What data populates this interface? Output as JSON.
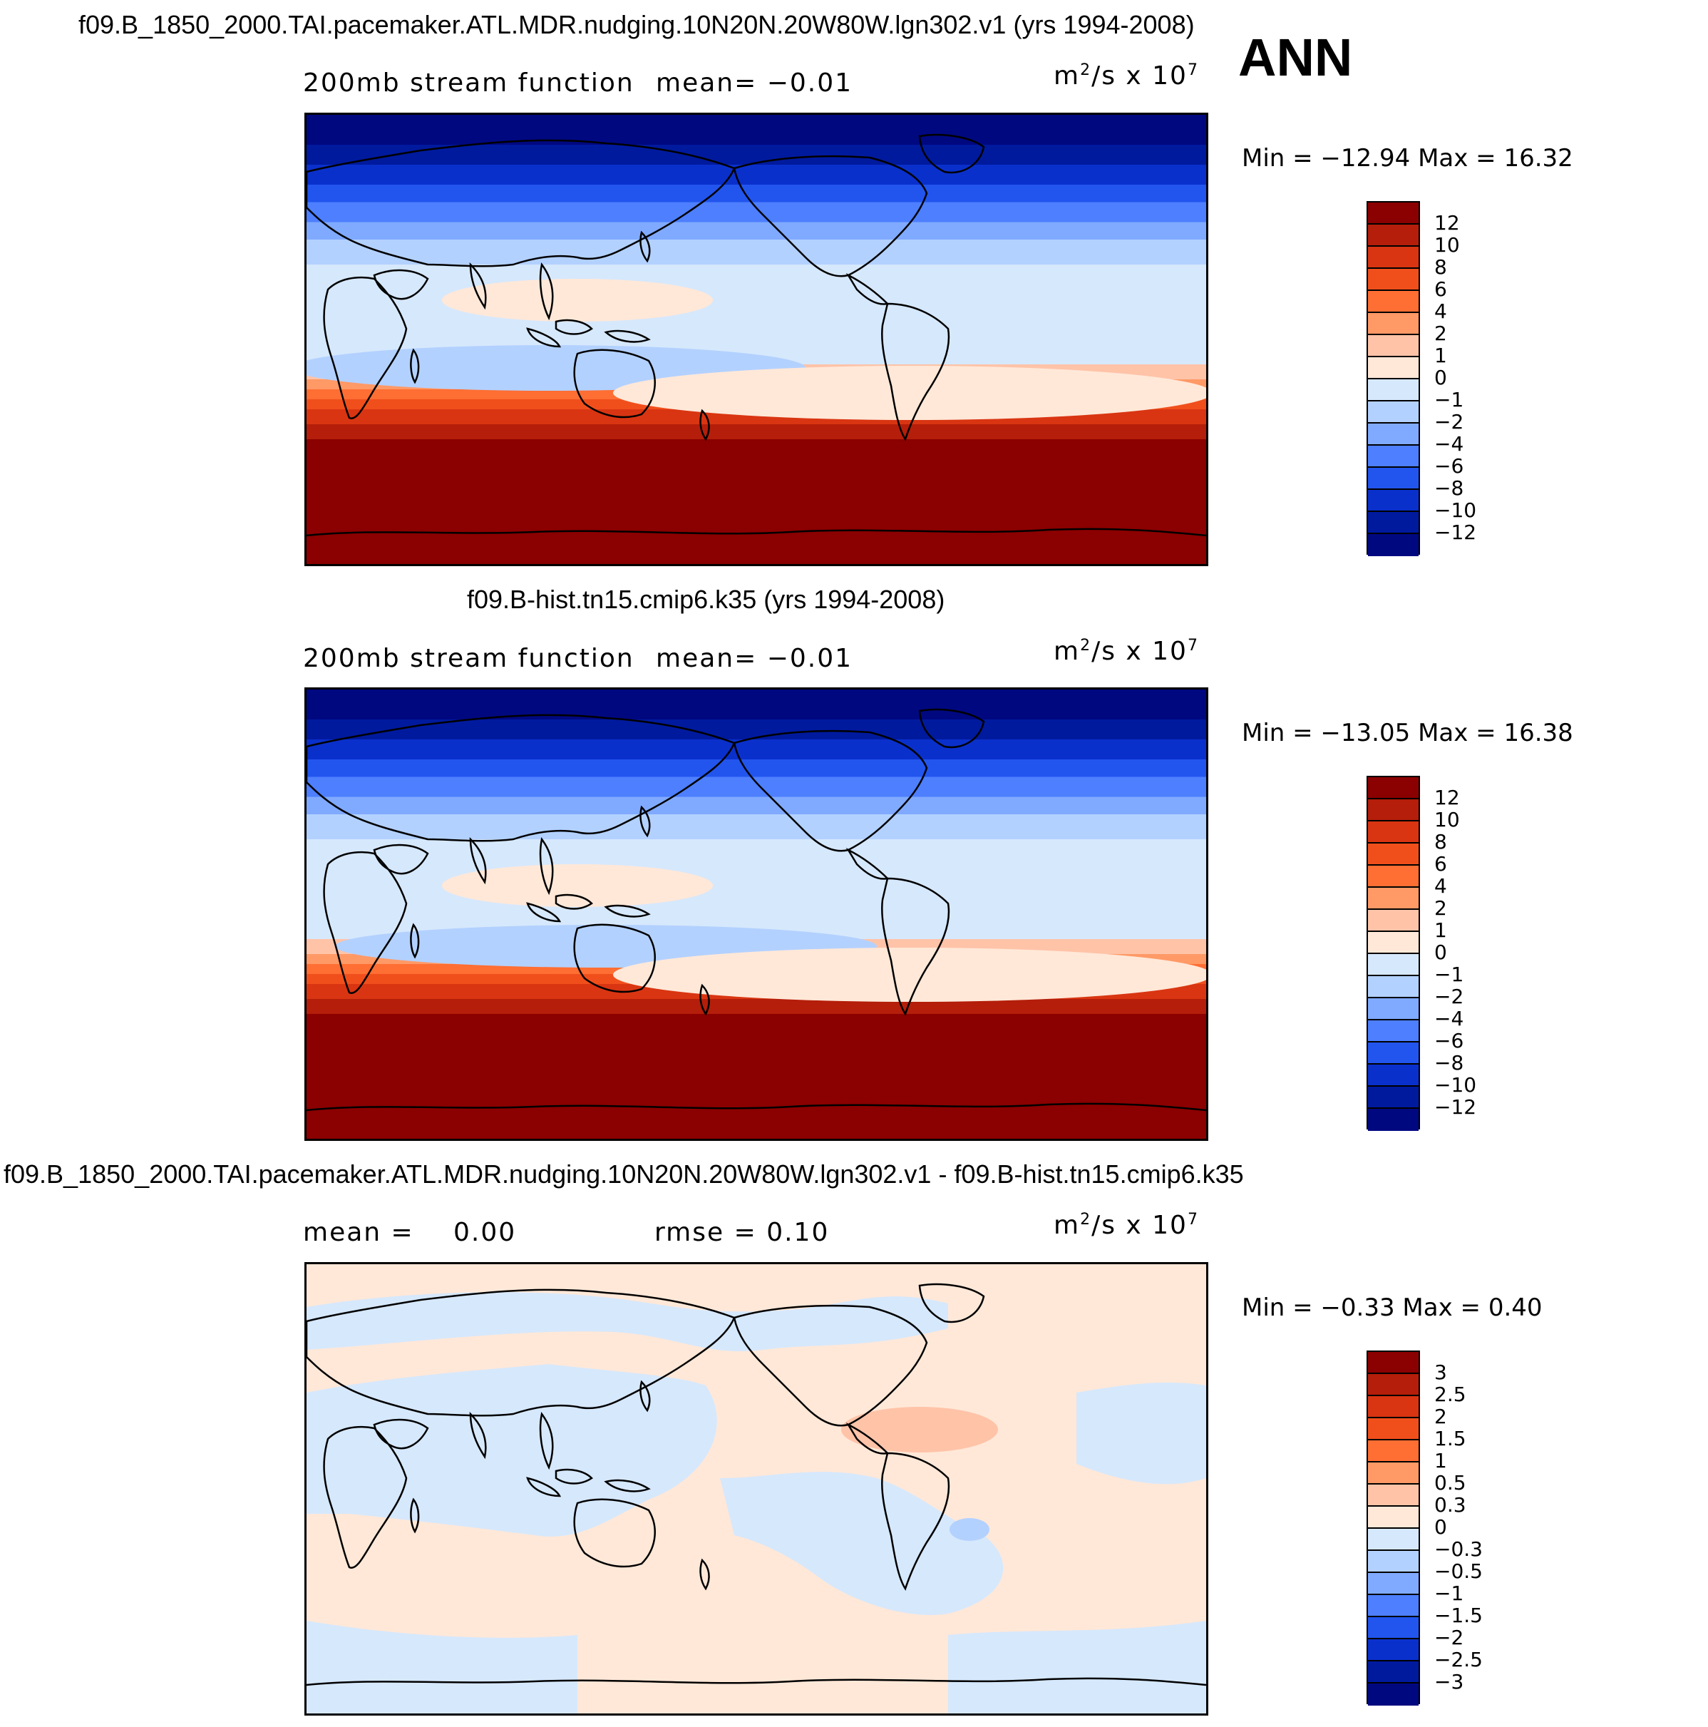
{
  "season": "ANN",
  "panels": [
    {
      "id": "p1",
      "case_title": "f09.B_1850_2000.TAI.pacemaker.ATL.MDR.nudging.10N20N.20W80W.lgn302.v1 (yrs 1994-2008)",
      "left_label": "200mb stream function",
      "mean_text": "mean=   −0.01",
      "rmse_text": "",
      "units_base": "m",
      "units_mid": "/s x 10",
      "units_sup1": "2",
      "units_sup2": "7",
      "stats": "Min = −12.94 Max =   16.32",
      "levels": [
        "12",
        "10",
        "8",
        "6",
        "4",
        "2",
        "1",
        "0",
        "−1",
        "−2",
        "−4",
        "−6",
        "−8",
        "−10",
        "−12"
      ],
      "colors": [
        "#8b0000",
        "#b41e0a",
        "#d93512",
        "#f04f1c",
        "#ff6e33",
        "#ff9966",
        "#ffc3a8",
        "#ffe8d8",
        "#d6e8fc",
        "#b3d1ff",
        "#80aaff",
        "#4d7fff",
        "#2255ee",
        "#0a30cc",
        "#001a9e",
        "#000880"
      ],
      "bands": [
        {
          "lat": 90,
          "c": 15
        },
        {
          "lat": 78,
          "c": 14
        },
        {
          "lat": 70,
          "c": 13
        },
        {
          "lat": 62,
          "c": 12
        },
        {
          "lat": 55,
          "c": 11
        },
        {
          "lat": 47,
          "c": 10
        },
        {
          "lat": 40,
          "c": 9
        },
        {
          "lat": 30,
          "c": 8
        },
        {
          "lat": -10,
          "c": 6
        },
        {
          "lat": -16,
          "c": 5
        },
        {
          "lat": -20,
          "c": 4
        },
        {
          "lat": -24,
          "c": 3
        },
        {
          "lat": -28,
          "c": 2
        },
        {
          "lat": -34,
          "c": 1
        },
        {
          "lat": -40,
          "c": 0
        }
      ]
    },
    {
      "id": "p2",
      "case_title": "f09.B-hist.tn15.cmip6.k35 (yrs 1994-2008)",
      "left_label": "200mb stream function",
      "mean_text": "mean=   −0.01",
      "rmse_text": "",
      "units_base": "m",
      "units_mid": "/s x 10",
      "units_sup1": "2",
      "units_sup2": "7",
      "stats": "Min = −13.05 Max =   16.38",
      "levels": [
        "12",
        "10",
        "8",
        "6",
        "4",
        "2",
        "1",
        "0",
        "−1",
        "−2",
        "−4",
        "−6",
        "−8",
        "−10",
        "−12"
      ],
      "colors": [
        "#8b0000",
        "#b41e0a",
        "#d93512",
        "#f04f1c",
        "#ff6e33",
        "#ff9966",
        "#ffc3a8",
        "#ffe8d8",
        "#d6e8fc",
        "#b3d1ff",
        "#80aaff",
        "#4d7fff",
        "#2255ee",
        "#0a30cc",
        "#001a9e",
        "#000880"
      ],
      "bands": [
        {
          "lat": 90,
          "c": 15
        },
        {
          "lat": 78,
          "c": 14
        },
        {
          "lat": 70,
          "c": 13
        },
        {
          "lat": 62,
          "c": 12
        },
        {
          "lat": 55,
          "c": 11
        },
        {
          "lat": 47,
          "c": 10
        },
        {
          "lat": 40,
          "c": 9
        },
        {
          "lat": 30,
          "c": 8
        },
        {
          "lat": -10,
          "c": 6
        },
        {
          "lat": -16,
          "c": 5
        },
        {
          "lat": -20,
          "c": 4
        },
        {
          "lat": -24,
          "c": 3
        },
        {
          "lat": -28,
          "c": 2
        },
        {
          "lat": -34,
          "c": 1
        },
        {
          "lat": -40,
          "c": 0
        }
      ]
    },
    {
      "id": "p3",
      "case_title": "f09.B_1850_2000.TAI.pacemaker.ATL.MDR.nudging.10N20N.20W80W.lgn302.v1 - f09.B-hist.tn15.cmip6.k35",
      "left_label": "mean =",
      "mean_text": "0.00",
      "rmse_text": "rmse =    0.10",
      "units_base": "m",
      "units_mid": "/s x 10",
      "units_sup1": "2",
      "units_sup2": "7",
      "stats": "Min =  −0.33 Max =    0.40",
      "levels": [
        "3",
        "2.5",
        "2",
        "1.5",
        "1",
        "0.5",
        "0.3",
        "0",
        "−0.3",
        "−0.5",
        "−1",
        "−1.5",
        "−2",
        "−2.5",
        "−3"
      ],
      "colors": [
        "#8b0000",
        "#b41e0a",
        "#d93512",
        "#f04f1c",
        "#ff6e33",
        "#ff9966",
        "#ffc3a8",
        "#ffe8d8",
        "#d6e8fc",
        "#b3d1ff",
        "#80aaff",
        "#4d7fff",
        "#2255ee",
        "#0a30cc",
        "#001a9e",
        "#000880"
      ],
      "bands": []
    }
  ]
}
